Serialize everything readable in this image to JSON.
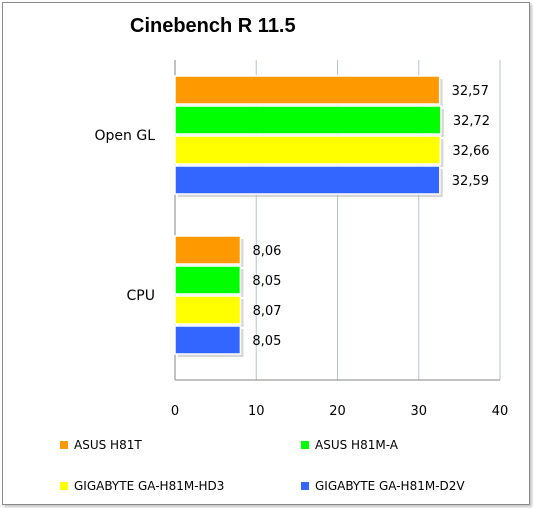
{
  "chart_data": {
    "type": "bar",
    "orientation": "horizontal",
    "title": "Cinebench R 11.5",
    "categories": [
      "Open GL",
      "CPU"
    ],
    "series": [
      {
        "name": "ASUS H81T",
        "color": "#FF9900",
        "values": [
          32.57,
          8.06
        ],
        "labels": [
          "32,57",
          "8,06"
        ]
      },
      {
        "name": "ASUS H81M-A",
        "color": "#00FF00",
        "values": [
          32.72,
          8.05
        ],
        "labels": [
          "32,72",
          "8,05"
        ]
      },
      {
        "name": "GIGABYTE GA-H81M-HD3",
        "color": "#FFFF00",
        "values": [
          32.66,
          8.07
        ],
        "labels": [
          "32,66",
          "8,07"
        ]
      },
      {
        "name": "GIGABYTE GA-H81M-D2V",
        "color": "#3366FF",
        "values": [
          32.59,
          8.05
        ],
        "labels": [
          "32,59",
          "8,05"
        ]
      }
    ],
    "xlim": [
      0,
      40
    ],
    "xticks": [
      "0",
      "10",
      "20",
      "30",
      "40"
    ],
    "grid": true,
    "legend_position": "bottom"
  }
}
